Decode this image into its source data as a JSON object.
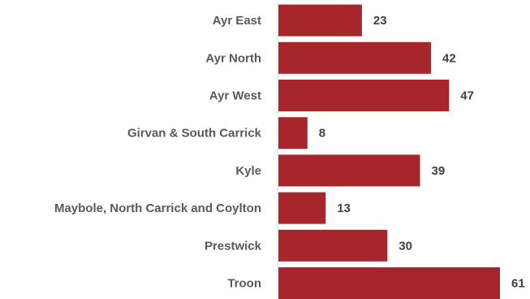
{
  "chart_data": {
    "type": "bar",
    "orientation": "horizontal",
    "title": "",
    "xlabel": "",
    "ylabel": "",
    "categories": [
      "Ayr East",
      "Ayr North",
      "Ayr West",
      "Girvan & South Carrick",
      "Kyle",
      "Maybole, North Carrick and Coylton",
      "Prestwick",
      "Troon"
    ],
    "values": [
      23,
      42,
      47,
      8,
      39,
      13,
      30,
      61
    ],
    "value_labels": [
      "23",
      "42",
      "47",
      "8",
      "39",
      "13",
      "30",
      "61"
    ],
    "xlim": [
      0,
      61
    ],
    "grid": false,
    "legend": "none",
    "colors": {
      "bar": "#A6262B",
      "axis": "#D9D9D9",
      "category_text": "#595959",
      "value_text": "#404040"
    }
  }
}
